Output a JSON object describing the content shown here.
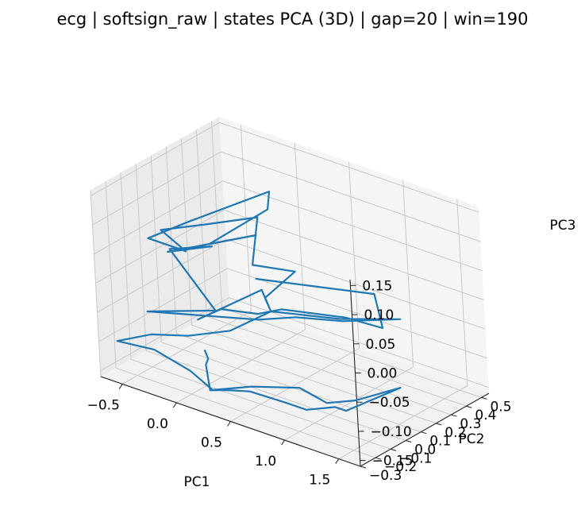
{
  "chart_data": {
    "type": "line",
    "title": "ecg | softsign_raw | states PCA (3D) | gap=20 | win=190",
    "xlabel": "PC1",
    "ylabel": "PC2",
    "zlabel": "PC3",
    "xticks": [
      "−0.5",
      "0.0",
      "0.5",
      "1.0",
      "1.5"
    ],
    "yticks": [
      "−0.3",
      "−0.2",
      "−0.1",
      "0.0",
      "0.1",
      "0.2",
      "0.3",
      "0.4",
      "0.5"
    ],
    "zticks": [
      "−0.15",
      "−0.10",
      "−0.05",
      "0.00",
      "0.05",
      "0.10",
      "0.15"
    ],
    "grid": true,
    "series": [
      {
        "color": "#1f77b4",
        "points": [
          [
            0.3,
            0.05,
            0.02
          ],
          [
            0.95,
            0.36,
            -0.01
          ],
          [
            1.1,
            0.3,
            -0.05
          ],
          [
            0.9,
            0.2,
            -0.03
          ],
          [
            0.45,
            0.1,
            -0.03
          ],
          [
            0.3,
            0.05,
            -0.04
          ],
          [
            0.1,
            -0.05,
            -0.03
          ],
          [
            -0.05,
            -0.1,
            -0.05
          ],
          [
            0.2,
            0.15,
            -0.02
          ],
          [
            0.35,
            0.1,
            -0.04
          ],
          [
            0.7,
            0.3,
            -0.06
          ],
          [
            1.05,
            0.45,
            -0.06
          ],
          [
            0.8,
            0.25,
            -0.05
          ],
          [
            0.55,
            0.12,
            -0.04
          ],
          [
            0.3,
            0.05,
            -0.05
          ],
          [
            -0.3,
            -0.25,
            -0.03
          ],
          [
            -0.1,
            0.05,
            -0.06
          ],
          [
            -0.5,
            0.05,
            0.02
          ],
          [
            -0.1,
            0.05,
            0.05
          ],
          [
            -0.3,
            -0.1,
            0.05
          ],
          [
            0.1,
            0.2,
            0.06
          ],
          [
            -0.2,
            0.1,
            0.04
          ],
          [
            0.15,
            0.25,
            0.1
          ],
          [
            0.1,
            0.3,
            0.12
          ],
          [
            -0.3,
            0.05,
            0.08
          ],
          [
            -0.55,
            -0.05,
            0.05
          ],
          [
            -0.2,
            -0.05,
            0.05
          ],
          [
            -0.5,
            0.0,
            0.06
          ],
          [
            -0.25,
            0.1,
            0.07
          ],
          [
            0.05,
            0.25,
            0.08
          ],
          [
            0.2,
            0.1,
            0.03
          ],
          [
            0.45,
            0.2,
            0.02
          ],
          [
            0.3,
            0.1,
            -0.02
          ],
          [
            0.35,
            0.1,
            -0.04
          ],
          [
            0.25,
            -0.1,
            -0.05
          ],
          [
            0.0,
            -0.2,
            -0.06
          ],
          [
            -0.35,
            -0.2,
            -0.08
          ],
          [
            -0.6,
            -0.25,
            -0.1
          ],
          [
            -0.3,
            -0.22,
            -0.1
          ],
          [
            0.0,
            -0.2,
            -0.12
          ],
          [
            0.2,
            -0.2,
            -0.14
          ],
          [
            0.45,
            -0.12,
            -0.13
          ],
          [
            0.8,
            -0.05,
            -0.12
          ],
          [
            1.05,
            -0.05,
            -0.13
          ],
          [
            1.25,
            0.0,
            -0.12
          ],
          [
            1.5,
            0.12,
            -0.1
          ],
          [
            1.3,
            -0.1,
            -0.12
          ],
          [
            1.2,
            -0.1,
            -0.12
          ],
          [
            1.0,
            -0.15,
            -0.13
          ],
          [
            0.8,
            -0.15,
            -0.13
          ],
          [
            0.55,
            -0.2,
            -0.12
          ],
          [
            0.4,
            -0.25,
            -0.12
          ],
          [
            0.25,
            -0.25,
            -0.13
          ],
          [
            0.15,
            -0.2,
            -0.1
          ],
          [
            0.1,
            -0.15,
            -0.1
          ],
          [
            0.0,
            -0.1,
            -0.1
          ]
        ]
      }
    ]
  }
}
